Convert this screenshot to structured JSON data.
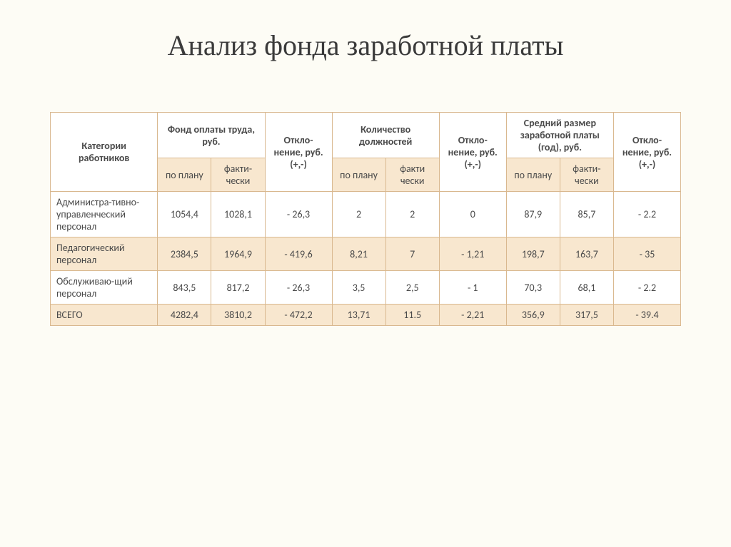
{
  "title": "Анализ фонда заработной платы",
  "headers": {
    "category": "Категории работников",
    "fund": "Фонд оплаты труда, руб.",
    "dev1": "Откло-нение, руб. (+,-)",
    "positions": "Количество должностей",
    "dev2": "Откло-нение, руб. (+,-)",
    "avg_salary": "Средний размер заработной платы (год), руб.",
    "dev3": "Откло-нение, руб. (+,-)",
    "plan": "по плану",
    "fact": "факти-чески",
    "fact2": "факти чески"
  },
  "rows": [
    {
      "label": "Администра-тивно-управленческий персонал",
      "c1": "1054,4",
      "c2": "1028,1",
      "c3": "- 26,3",
      "c4": "2",
      "c5": "2",
      "c6": "0",
      "c7": "87,9",
      "c8": "85,7",
      "c9": "- 2.2"
    },
    {
      "label": "Педагогический персонал",
      "c1": "2384,5",
      "c2": "1964,9",
      "c3": "- 419,6",
      "c4": "8,21",
      "c5": "7",
      "c6": "- 1,21",
      "c7": "198,7",
      "c8": "163,7",
      "c9": "- 35"
    },
    {
      "label": "Обслуживаю-щий персонал",
      "c1": "843,5",
      "c2": "817,2",
      "c3": "- 26,3",
      "c4": "3,5",
      "c5": "2,5",
      "c6": "- 1",
      "c7": "70,3",
      "c8": "68,1",
      "c9": "- 2.2"
    },
    {
      "label": "ВСЕГО",
      "c1": "4282,4",
      "c2": "3810,2",
      "c3": "- 472,2",
      "c4": "13,71",
      "c5": "11.5",
      "c6": "- 2,21",
      "c7": "356,9",
      "c8": "317,5",
      "c9": "- 39.4"
    }
  ],
  "style": {
    "background": "#fdfcf5",
    "border_color": "#d9b88f",
    "alt_row_bg": "#f8e7cf",
    "title_color": "#3a3a3a",
    "text_color": "#4a4a4a",
    "title_fontsize": 40,
    "table_fontsize": 14
  }
}
